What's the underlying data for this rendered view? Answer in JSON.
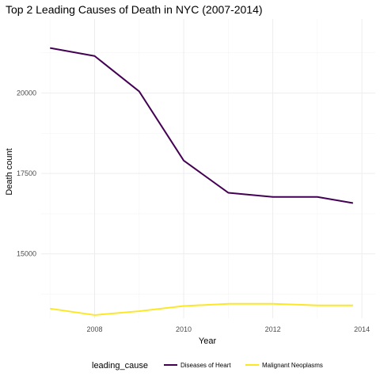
{
  "chart_data": {
    "type": "line",
    "title": "Top 2 Leading Causes of Death in NYC (2007-2014)",
    "xlabel": "Year",
    "ylabel": "Death count",
    "xlim": [
      2006.8,
      2014.3
    ],
    "ylim": [
      13000,
      22300
    ],
    "x_ticks": [
      2008,
      2010,
      2012,
      2014
    ],
    "y_ticks": [
      15000,
      17500,
      20000
    ],
    "x_tick_labels": [
      "2008",
      "2010",
      "2012",
      "2014"
    ],
    "y_tick_labels": [
      "15000",
      "17500",
      "20000"
    ],
    "grid": true,
    "legend": {
      "title": "leading_cause",
      "placement": "bottom"
    },
    "x": [
      2007,
      2008,
      2009,
      2010,
      2011,
      2012,
      2013,
      2013.8
    ],
    "series": [
      {
        "name": "Diseases of Heart",
        "color": "#440154",
        "values": [
          21400,
          21150,
          20050,
          17900,
          16900,
          16770,
          16770,
          16580
        ]
      },
      {
        "name": "Malignant Neoplasms",
        "color": "#FDE725",
        "values": [
          13300,
          13100,
          13220,
          13380,
          13450,
          13450,
          13400,
          13400
        ]
      }
    ]
  }
}
